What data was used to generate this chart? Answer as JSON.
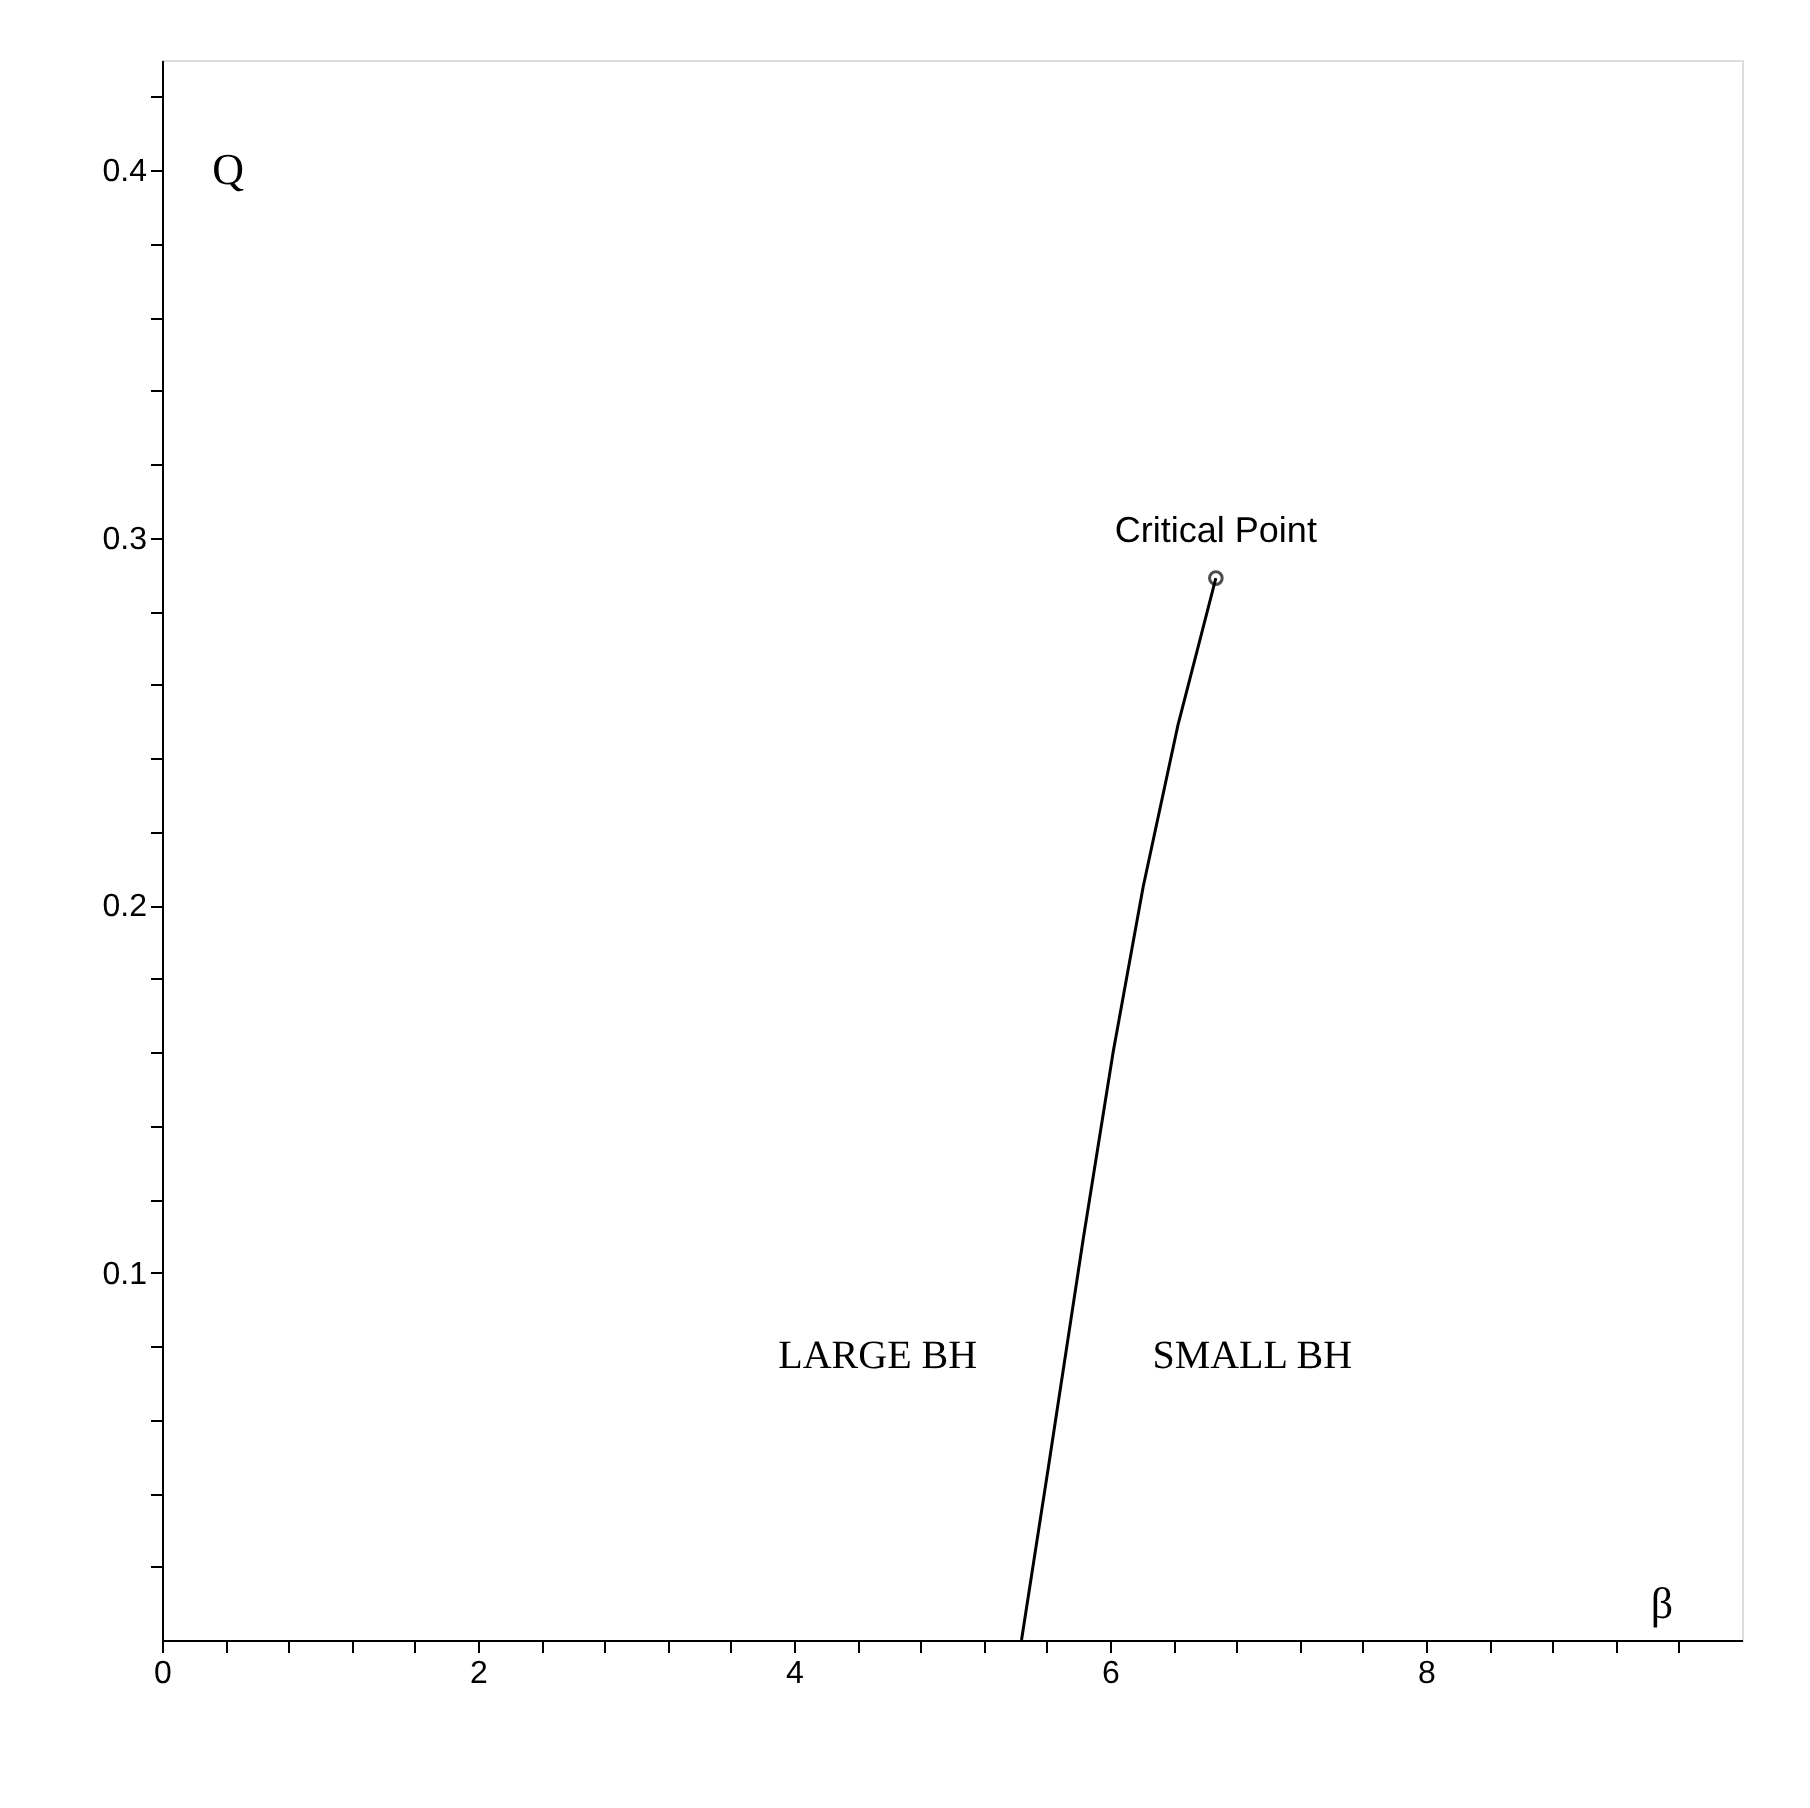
{
  "chart_data": {
    "type": "line",
    "xlabel": "β",
    "ylabel": "Q",
    "xlim": [
      0,
      10
    ],
    "ylim": [
      0,
      0.43
    ],
    "xticks": [
      0,
      {
        "value": 0.4,
        "label": null
      },
      {
        "value": 0.8,
        "label": null
      },
      {
        "value": 1.2,
        "label": null
      },
      {
        "value": 1.6,
        "label": null
      },
      2,
      {
        "value": 2.4,
        "label": null
      },
      {
        "value": 2.8,
        "label": null
      },
      {
        "value": 3.2,
        "label": null
      },
      {
        "value": 3.6,
        "label": null
      },
      4,
      {
        "value": 4.4,
        "label": null
      },
      {
        "value": 4.8,
        "label": null
      },
      {
        "value": 5.2,
        "label": null
      },
      {
        "value": 5.6,
        "label": null
      },
      6,
      {
        "value": 6.4,
        "label": null
      },
      {
        "value": 6.8,
        "label": null
      },
      {
        "value": 7.2,
        "label": null
      },
      {
        "value": 7.6,
        "label": null
      },
      8,
      {
        "value": 8.4,
        "label": null
      },
      {
        "value": 8.8,
        "label": null
      },
      {
        "value": 9.2,
        "label": null
      },
      {
        "value": 9.6,
        "label": null
      }
    ],
    "yticks": [
      {
        "value": 0.02,
        "label": null
      },
      {
        "value": 0.04,
        "label": null
      },
      {
        "value": 0.06,
        "label": null
      },
      {
        "value": 0.08,
        "label": null
      },
      0.1,
      {
        "value": 0.12,
        "label": null
      },
      {
        "value": 0.14,
        "label": null
      },
      {
        "value": 0.16,
        "label": null
      },
      {
        "value": 0.18,
        "label": null
      },
      0.2,
      {
        "value": 0.22,
        "label": null
      },
      {
        "value": 0.24,
        "label": null
      },
      {
        "value": 0.26,
        "label": null
      },
      {
        "value": 0.28,
        "label": null
      },
      0.3,
      {
        "value": 0.32,
        "label": null
      },
      {
        "value": 0.34,
        "label": null
      },
      {
        "value": 0.36,
        "label": null
      },
      {
        "value": 0.38,
        "label": null
      },
      0.4,
      {
        "value": 0.42,
        "label": null
      }
    ],
    "series": [
      {
        "color": "#000000",
        "marker": "none",
        "line_style": "solid",
        "x": [
          5.44,
          5.61,
          5.83,
          6.02,
          6.21,
          6.43,
          6.67
        ],
        "values": [
          0,
          0.047,
          0.109,
          0.16,
          0.205,
          0.249,
          0.289
        ]
      },
      {
        "type": "scatter",
        "color": "#000000",
        "marker": "circle",
        "x": [
          6.67
        ],
        "values": [
          0.289
        ]
      }
    ],
    "annotations": [
      {
        "text": "Critical Point",
        "x": 6.67,
        "y": 0.289
      },
      "LARGE BH",
      "SMALL BH"
    ],
    "grid": false
  }
}
